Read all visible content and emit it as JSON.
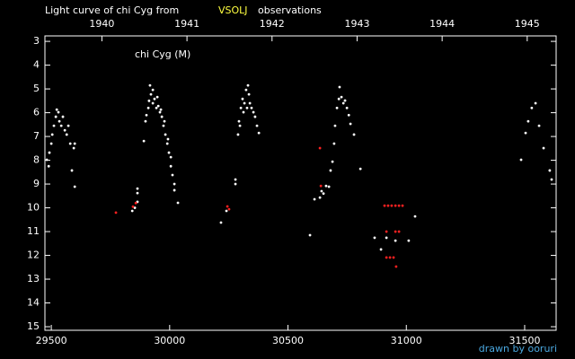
{
  "chart_data": {
    "type": "scatter",
    "title": "Light curve of chi Cyg from",
    "title_source": "VSOLJ",
    "title_source_color": "#ffff40",
    "title_end": "observations",
    "label": "chi Cyg (M)",
    "credit": "drawn by ooruri",
    "credit_color": "#4aa8e0",
    "xlim": [
      29473,
      31633
    ],
    "xticks": [
      29500,
      30000,
      30500,
      31000,
      31500
    ],
    "x2lim": [
      1939.33,
      1945.34
    ],
    "x2ticks": [
      1940,
      1941,
      1942,
      1943,
      1944,
      1945
    ],
    "ylim": [
      15.15,
      2.77
    ],
    "yticks": [
      3,
      4,
      5,
      6,
      7,
      8,
      9,
      10,
      11,
      12,
      13,
      14,
      15
    ],
    "series": [
      {
        "color": "#ffffff",
        "x": [
          29481,
          29489,
          29492,
          29500,
          29504,
          29511,
          29519,
          29523,
          29530,
          29534,
          29542,
          29549,
          29557,
          29565,
          29572,
          29580,
          29587,
          29595,
          29599,
          29599,
          29842,
          29853,
          29864,
          29864,
          29864,
          29891,
          29898,
          29910,
          29917,
          29921,
          29929,
          29936,
          29944,
          29952,
          29959,
          29967,
          29974,
          29982,
          29990,
          29997,
          30005,
          30012,
          30020,
          30020,
          30035,
          29902,
          29913,
          29929,
          29948,
          29963,
          29978,
          29993,
          30005,
          30217,
          30240,
          30278,
          30278,
          30289,
          30293,
          30301,
          30308,
          30316,
          30323,
          30331,
          30335,
          30339,
          30346,
          30354,
          30361,
          30369,
          30377,
          30297,
          30312,
          30327,
          30593,
          30612,
          30635,
          30642,
          30650,
          30661,
          30673,
          30680,
          30688,
          30695,
          30699,
          30707,
          30715,
          30718,
          30726,
          30734,
          30741,
          30749,
          30757,
          30764,
          30779,
          30806,
          30866,
          30893,
          30916,
          30954,
          31010,
          31037,
          31485,
          31504,
          31515,
          31530,
          31546,
          31561,
          31580,
          31606,
          31614
        ],
        "values": [
          7.98,
          8.25,
          7.68,
          7.3,
          6.92,
          6.55,
          6.17,
          5.87,
          5.98,
          6.36,
          6.55,
          6.17,
          6.74,
          6.92,
          6.55,
          7.3,
          8.43,
          7.49,
          9.11,
          7.3,
          10.13,
          10.0,
          9.75,
          9.38,
          9.19,
          7.19,
          6.36,
          5.8,
          4.85,
          5.23,
          5.6,
          5.42,
          5.8,
          5.72,
          5.98,
          6.17,
          6.55,
          6.92,
          7.3,
          7.68,
          8.25,
          8.62,
          9.0,
          9.26,
          9.79,
          6.1,
          5.5,
          5.04,
          5.34,
          5.87,
          6.36,
          7.11,
          7.87,
          10.62,
          10.13,
          8.81,
          9.0,
          6.92,
          6.36,
          5.8,
          5.42,
          5.6,
          5.04,
          4.85,
          5.23,
          5.6,
          5.8,
          5.98,
          6.17,
          6.55,
          6.85,
          6.55,
          5.98,
          5.8,
          11.15,
          9.64,
          9.57,
          9.3,
          9.4,
          9.08,
          9.11,
          8.43,
          8.06,
          7.3,
          6.55,
          5.8,
          5.42,
          4.92,
          5.34,
          5.6,
          5.49,
          5.8,
          6.1,
          6.47,
          6.92,
          8.36,
          11.26,
          11.75,
          11.26,
          11.38,
          11.38,
          10.36,
          7.98,
          6.85,
          6.36,
          5.8,
          5.6,
          6.55,
          7.49,
          8.43,
          8.81
        ]
      },
      {
        "color": "#ff2020",
        "x": [
          29773,
          29845,
          29857,
          30244,
          30251,
          30635,
          30639,
          30908,
          30923,
          30938,
          30954,
          30969,
          30984,
          30916,
          30954,
          30969,
          30916,
          30931,
          30946,
          30957
        ],
        "values": [
          10.2,
          9.95,
          9.8,
          9.94,
          10.06,
          7.49,
          9.08,
          9.91,
          9.91,
          9.91,
          9.91,
          9.91,
          9.91,
          11.0,
          11.0,
          11.0,
          12.09,
          12.09,
          12.09,
          12.47
        ]
      }
    ]
  }
}
